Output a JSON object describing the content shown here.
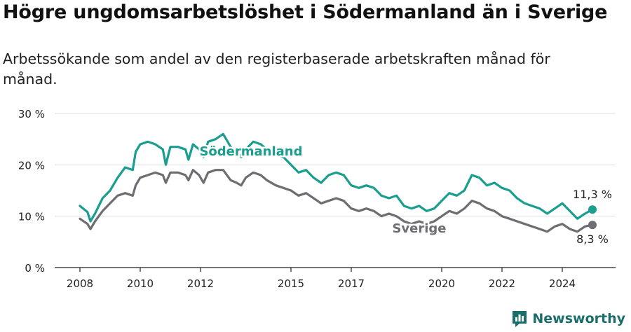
{
  "title": "Högre ungdomsarbetslöshet i Södermanland än i Sverige",
  "subtitle": "Arbetssökande som andel av den registerbaserade arbetskraften månad för månad.",
  "brand": {
    "name": "Newsworthy"
  },
  "colors": {
    "sodermanland": "#1a9e8f",
    "sverige": "#6d6d72",
    "grid": "#dddddd",
    "axis": "#222222"
  },
  "chart_data": {
    "type": "line",
    "title": "Högre ungdomsarbetslöshet i Södermanland än i Sverige",
    "ylim": [
      0,
      30
    ],
    "y_ticks": [
      0,
      10,
      20,
      30
    ],
    "y_tick_labels": [
      "0 %",
      "10 %",
      "20 %",
      "30 %"
    ],
    "x_ticks": [
      2008,
      2010,
      2012,
      2015,
      2017,
      2020,
      2022,
      2024
    ],
    "x_tick_labels": [
      "2008",
      "2010",
      "2012",
      "2015",
      "2017",
      "2020",
      "2022",
      "2024"
    ],
    "grid": true,
    "series": [
      {
        "name": "Södermanland",
        "color": "#1a9e8f",
        "end_label": "11,3 %",
        "points": [
          [
            2008.0,
            12.0
          ],
          [
            2008.25,
            10.8
          ],
          [
            2008.35,
            9.0
          ],
          [
            2008.5,
            10.5
          ],
          [
            2008.75,
            13.5
          ],
          [
            2009.0,
            15.0
          ],
          [
            2009.25,
            17.5
          ],
          [
            2009.5,
            19.5
          ],
          [
            2009.75,
            19.0
          ],
          [
            2009.85,
            22.5
          ],
          [
            2010.0,
            24.0
          ],
          [
            2010.25,
            24.5
          ],
          [
            2010.5,
            24.0
          ],
          [
            2010.75,
            23.0
          ],
          [
            2010.85,
            20.0
          ],
          [
            2011.0,
            23.5
          ],
          [
            2011.25,
            23.5
          ],
          [
            2011.5,
            23.0
          ],
          [
            2011.6,
            21.0
          ],
          [
            2011.75,
            24.0
          ],
          [
            2011.95,
            23.0
          ],
          [
            2012.1,
            21.5
          ],
          [
            2012.25,
            24.5
          ],
          [
            2012.5,
            25.0
          ],
          [
            2012.75,
            26.0
          ],
          [
            2013.0,
            23.5
          ],
          [
            2013.2,
            22.5
          ],
          [
            2013.35,
            21.5
          ],
          [
            2013.5,
            23.0
          ],
          [
            2013.75,
            24.5
          ],
          [
            2014.0,
            24.0
          ],
          [
            2014.2,
            23.0
          ],
          [
            2014.5,
            22.0
          ],
          [
            2014.75,
            21.5
          ],
          [
            2015.0,
            20.0
          ],
          [
            2015.25,
            18.5
          ],
          [
            2015.5,
            19.0
          ],
          [
            2015.75,
            17.5
          ],
          [
            2016.0,
            16.5
          ],
          [
            2016.25,
            18.0
          ],
          [
            2016.5,
            18.5
          ],
          [
            2016.75,
            18.0
          ],
          [
            2017.0,
            16.0
          ],
          [
            2017.25,
            15.5
          ],
          [
            2017.5,
            16.0
          ],
          [
            2017.75,
            15.5
          ],
          [
            2018.0,
            14.0
          ],
          [
            2018.25,
            13.5
          ],
          [
            2018.5,
            14.0
          ],
          [
            2018.75,
            12.0
          ],
          [
            2019.0,
            11.5
          ],
          [
            2019.25,
            12.0
          ],
          [
            2019.5,
            11.0
          ],
          [
            2019.75,
            11.5
          ],
          [
            2020.0,
            13.0
          ],
          [
            2020.25,
            14.5
          ],
          [
            2020.5,
            14.0
          ],
          [
            2020.75,
            15.0
          ],
          [
            2021.0,
            18.0
          ],
          [
            2021.25,
            17.5
          ],
          [
            2021.5,
            16.0
          ],
          [
            2021.75,
            16.5
          ],
          [
            2022.0,
            15.5
          ],
          [
            2022.25,
            15.0
          ],
          [
            2022.5,
            13.5
          ],
          [
            2022.75,
            12.5
          ],
          [
            2023.0,
            12.0
          ],
          [
            2023.25,
            11.5
          ],
          [
            2023.5,
            10.5
          ],
          [
            2023.75,
            11.5
          ],
          [
            2024.0,
            12.5
          ],
          [
            2024.25,
            11.0
          ],
          [
            2024.5,
            9.5
          ],
          [
            2024.75,
            10.5
          ],
          [
            2025.0,
            11.3
          ]
        ]
      },
      {
        "name": "Sverige",
        "color": "#6d6d72",
        "end_label": "8,3 %",
        "points": [
          [
            2008.0,
            9.5
          ],
          [
            2008.25,
            8.5
          ],
          [
            2008.35,
            7.5
          ],
          [
            2008.5,
            9.0
          ],
          [
            2008.75,
            11.0
          ],
          [
            2009.0,
            12.5
          ],
          [
            2009.25,
            14.0
          ],
          [
            2009.5,
            14.5
          ],
          [
            2009.75,
            14.0
          ],
          [
            2009.85,
            16.0
          ],
          [
            2010.0,
            17.5
          ],
          [
            2010.25,
            18.0
          ],
          [
            2010.5,
            18.5
          ],
          [
            2010.75,
            18.0
          ],
          [
            2010.85,
            16.5
          ],
          [
            2011.0,
            18.5
          ],
          [
            2011.25,
            18.5
          ],
          [
            2011.5,
            18.0
          ],
          [
            2011.6,
            17.0
          ],
          [
            2011.75,
            19.0
          ],
          [
            2011.95,
            18.0
          ],
          [
            2012.1,
            16.5
          ],
          [
            2012.25,
            18.5
          ],
          [
            2012.5,
            19.0
          ],
          [
            2012.75,
            19.0
          ],
          [
            2013.0,
            17.0
          ],
          [
            2013.2,
            16.5
          ],
          [
            2013.35,
            16.0
          ],
          [
            2013.5,
            17.5
          ],
          [
            2013.75,
            18.5
          ],
          [
            2014.0,
            18.0
          ],
          [
            2014.2,
            17.0
          ],
          [
            2014.5,
            16.0
          ],
          [
            2014.75,
            15.5
          ],
          [
            2015.0,
            15.0
          ],
          [
            2015.25,
            14.0
          ],
          [
            2015.5,
            14.5
          ],
          [
            2015.75,
            13.5
          ],
          [
            2016.0,
            12.5
          ],
          [
            2016.25,
            13.0
          ],
          [
            2016.5,
            13.5
          ],
          [
            2016.75,
            13.0
          ],
          [
            2017.0,
            11.5
          ],
          [
            2017.25,
            11.0
          ],
          [
            2017.5,
            11.5
          ],
          [
            2017.75,
            11.0
          ],
          [
            2018.0,
            10.0
          ],
          [
            2018.25,
            10.5
          ],
          [
            2018.5,
            10.0
          ],
          [
            2018.75,
            9.0
          ],
          [
            2019.0,
            8.5
          ],
          [
            2019.25,
            9.0
          ],
          [
            2019.5,
            8.5
          ],
          [
            2019.75,
            9.0
          ],
          [
            2020.0,
            10.0
          ],
          [
            2020.25,
            11.0
          ],
          [
            2020.5,
            10.5
          ],
          [
            2020.75,
            11.5
          ],
          [
            2021.0,
            13.0
          ],
          [
            2021.25,
            12.5
          ],
          [
            2021.5,
            11.5
          ],
          [
            2021.75,
            11.0
          ],
          [
            2022.0,
            10.0
          ],
          [
            2022.25,
            9.5
          ],
          [
            2022.5,
            9.0
          ],
          [
            2022.75,
            8.5
          ],
          [
            2023.0,
            8.0
          ],
          [
            2023.25,
            7.5
          ],
          [
            2023.5,
            7.0
          ],
          [
            2023.75,
            8.0
          ],
          [
            2024.0,
            8.5
          ],
          [
            2024.25,
            7.5
          ],
          [
            2024.5,
            7.0
          ],
          [
            2024.75,
            8.0
          ],
          [
            2025.0,
            8.3
          ]
        ]
      }
    ]
  }
}
